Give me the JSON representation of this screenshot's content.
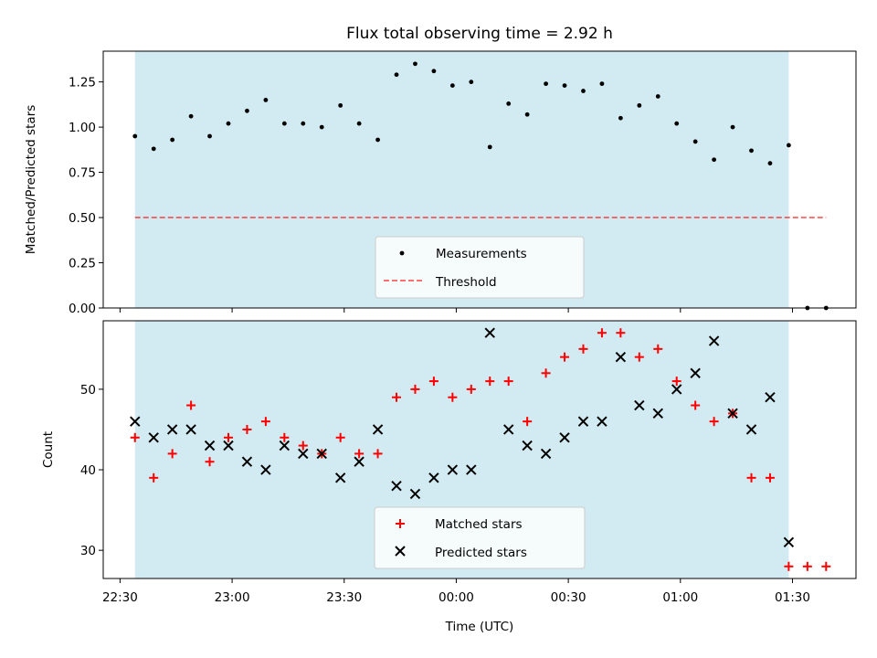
{
  "colors": {
    "shade": "#add8e6",
    "measurement": "#000000",
    "threshold": "#ff0000",
    "matched": "#ff0000",
    "predicted": "#000000"
  },
  "chart_data": [
    {
      "type": "scatter",
      "title": "Flux total observing time = 2.92 h",
      "xlabel": "",
      "ylabel": "Matched/Predicted stars",
      "ylim": [
        0,
        1.42
      ],
      "yticks": [
        "0.00",
        "0.25",
        "0.50",
        "0.75",
        "1.00",
        "1.25"
      ],
      "shaded_span": {
        "start": "22:34",
        "end": "01:29"
      },
      "threshold": 0.5,
      "threshold_range": {
        "start": "22:34",
        "end": "01:39"
      },
      "legend": {
        "placement": "lower center",
        "entries": [
          "Measurements",
          "Threshold"
        ]
      },
      "series": [
        {
          "name": "Measurements",
          "marker": "dot",
          "x": [
            "22:34",
            "22:39",
            "22:44",
            "22:49",
            "22:54",
            "22:59",
            "23:04",
            "23:09",
            "23:14",
            "23:19",
            "23:24",
            "23:29",
            "23:34",
            "23:39",
            "23:44",
            "23:49",
            "23:54",
            "23:59",
            "00:04",
            "00:09",
            "00:14",
            "00:19",
            "00:24",
            "00:29",
            "00:34",
            "00:39",
            "00:44",
            "00:49",
            "00:54",
            "00:59",
            "01:04",
            "01:09",
            "01:14",
            "01:19",
            "01:24",
            "01:29",
            "01:34",
            "01:39"
          ],
          "y": [
            0.95,
            0.88,
            0.93,
            1.06,
            0.95,
            1.02,
            1.09,
            1.15,
            1.02,
            1.02,
            1.0,
            1.12,
            1.02,
            0.93,
            1.29,
            1.35,
            1.31,
            1.23,
            1.25,
            0.89,
            1.13,
            1.07,
            1.24,
            1.23,
            1.2,
            1.24,
            1.05,
            1.12,
            1.17,
            1.02,
            0.92,
            0.82,
            1.0,
            0.87,
            0.8,
            0.9,
            0.0,
            0.0
          ]
        }
      ]
    },
    {
      "type": "scatter",
      "xlabel": "Time (UTC)",
      "ylabel": "Count",
      "ylim": [
        26.5,
        58.5
      ],
      "yticks": [
        "30",
        "40",
        "50"
      ],
      "xticks": [
        "22:30",
        "23:00",
        "23:30",
        "00:00",
        "00:30",
        "01:00",
        "01:30"
      ],
      "shaded_span": {
        "start": "22:34",
        "end": "01:29"
      },
      "legend": {
        "placement": "lower center",
        "entries": [
          "Matched stars",
          "Predicted stars"
        ]
      },
      "series": [
        {
          "name": "Matched stars",
          "marker": "plus",
          "x": [
            "22:34",
            "22:39",
            "22:44",
            "22:49",
            "22:54",
            "22:59",
            "23:04",
            "23:09",
            "23:14",
            "23:19",
            "23:24",
            "23:29",
            "23:34",
            "23:39",
            "23:44",
            "23:49",
            "23:54",
            "23:59",
            "00:04",
            "00:09",
            "00:14",
            "00:19",
            "00:24",
            "00:29",
            "00:34",
            "00:39",
            "00:44",
            "00:49",
            "00:54",
            "00:59",
            "01:04",
            "01:09",
            "01:14",
            "01:19",
            "01:24",
            "01:29",
            "01:34",
            "01:39"
          ],
          "y": [
            44,
            39,
            42,
            48,
            41,
            44,
            45,
            46,
            44,
            43,
            42,
            44,
            42,
            42,
            49,
            50,
            51,
            49,
            50,
            51,
            51,
            46,
            52,
            54,
            55,
            57,
            57,
            54,
            55,
            51,
            48,
            46,
            47,
            39,
            39,
            28,
            28,
            28
          ]
        },
        {
          "name": "Predicted stars",
          "marker": "x",
          "x": [
            "22:34",
            "22:39",
            "22:44",
            "22:49",
            "22:54",
            "22:59",
            "23:04",
            "23:09",
            "23:14",
            "23:19",
            "23:24",
            "23:29",
            "23:34",
            "23:39",
            "23:44",
            "23:49",
            "23:54",
            "23:59",
            "00:04",
            "00:09",
            "00:14",
            "00:19",
            "00:24",
            "00:29",
            "00:34",
            "00:39",
            "00:44",
            "00:49",
            "00:54",
            "00:59",
            "01:04",
            "01:09",
            "01:14",
            "01:19",
            "01:24",
            "01:29"
          ],
          "y": [
            46,
            44,
            45,
            45,
            43,
            43,
            41,
            40,
            43,
            42,
            42,
            39,
            41,
            45,
            38,
            37,
            39,
            40,
            40,
            57,
            45,
            43,
            42,
            44,
            46,
            46,
            54,
            48,
            47,
            50,
            52,
            56,
            47,
            45,
            49,
            31
          ]
        }
      ]
    }
  ]
}
